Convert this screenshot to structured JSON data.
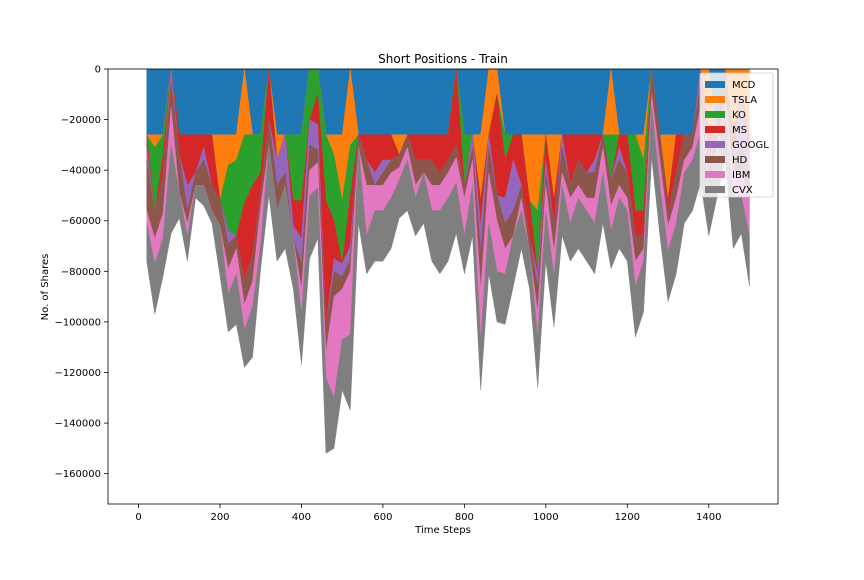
{
  "chart_data": {
    "type": "area",
    "title": "Short Positions - Train",
    "xlabel": "Time Steps",
    "ylabel": "No. of Shares",
    "xlim": [
      -75,
      1570
    ],
    "ylim": [
      -172000,
      0
    ],
    "x_ticks": [
      0,
      200,
      400,
      600,
      800,
      1000,
      1200,
      1400
    ],
    "x_tick_labels": [
      "0",
      "200",
      "400",
      "600",
      "800",
      "1000",
      "1200",
      "1400"
    ],
    "y_ticks": [
      0,
      -20000,
      -40000,
      -60000,
      -80000,
      -100000,
      -120000,
      -140000,
      -160000
    ],
    "y_tick_labels": [
      "0",
      "−20000",
      "−40000",
      "−60000",
      "−80000",
      "−100000",
      "−120000",
      "−140000",
      "−160000"
    ],
    "legend_position": "top-right",
    "grid": false,
    "x_start": 20,
    "x_end": 1500,
    "x_step": 20,
    "series": [
      {
        "name": "MCD",
        "color": "#1f77b4",
        "values": [
          -26000,
          -26000,
          -26000,
          0,
          -26000,
          -26000,
          -26000,
          -26000,
          -26000,
          -26000,
          -26000,
          -26000,
          0,
          -26000,
          -26000,
          0,
          -26000,
          -26000,
          -26000,
          -26000,
          0,
          0,
          -26000,
          -26000,
          -26000,
          0,
          -26000,
          -26000,
          -26000,
          -26000,
          -26000,
          -26000,
          -26000,
          -26000,
          -26000,
          -26000,
          -26000,
          -26000,
          0,
          -26000,
          -26000,
          -26000,
          0,
          0,
          -26000,
          -26000,
          -26000,
          -26000,
          -26000,
          -26000,
          -26000,
          -26000,
          -26000,
          -26000,
          -26000,
          -26000,
          -26000,
          0,
          -26000,
          -26000,
          -26000,
          -26000,
          0,
          -26000,
          -26000,
          -26000,
          -26000,
          -26000,
          0,
          0,
          -26000,
          0,
          0,
          0,
          0
        ]
      },
      {
        "name": "TSLA",
        "color": "#ff7f0e",
        "values": [
          0,
          -5000,
          0,
          0,
          0,
          0,
          0,
          0,
          0,
          -26000,
          -12000,
          -10000,
          -26000,
          0,
          0,
          0,
          -10000,
          0,
          0,
          0,
          0,
          0,
          0,
          -8000,
          -26000,
          -30000,
          0,
          0,
          0,
          0,
          0,
          -8000,
          0,
          0,
          0,
          0,
          0,
          0,
          0,
          0,
          0,
          -26000,
          -26000,
          -10000,
          0,
          0,
          0,
          -26000,
          -30000,
          0,
          -26000,
          0,
          0,
          0,
          0,
          0,
          0,
          -26000,
          0,
          0,
          0,
          -10000,
          0,
          0,
          -26000,
          0,
          0,
          0,
          0,
          -26000,
          0,
          0,
          -26000,
          -10000,
          -26000
        ]
      },
      {
        "name": "KO",
        "color": "#2ca02c",
        "values": [
          0,
          -26000,
          -8000,
          0,
          0,
          0,
          0,
          0,
          0,
          0,
          -26000,
          -30000,
          -27000,
          -20000,
          -15000,
          0,
          0,
          0,
          -26000,
          -26000,
          -20000,
          -10000,
          -26000,
          -26000,
          -25000,
          -20000,
          0,
          0,
          0,
          0,
          0,
          0,
          0,
          0,
          0,
          0,
          0,
          0,
          0,
          -20000,
          0,
          0,
          0,
          0,
          -10000,
          0,
          0,
          0,
          -25000,
          0,
          0,
          0,
          0,
          0,
          0,
          0,
          0,
          -18000,
          0,
          0,
          -30000,
          -20000,
          0,
          0,
          0,
          0,
          0,
          0,
          0,
          0,
          0,
          0,
          0,
          0,
          0
        ]
      },
      {
        "name": "MS",
        "color": "#d62728",
        "values": [
          -5000,
          0,
          -8000,
          0,
          -8000,
          -20000,
          -15000,
          -5000,
          -20000,
          0,
          0,
          0,
          -30000,
          -28000,
          -8000,
          -20000,
          0,
          0,
          -10000,
          -15000,
          0,
          -12000,
          -50000,
          -15000,
          0,
          -20000,
          0,
          -10000,
          -15000,
          -10000,
          -10000,
          0,
          0,
          -10000,
          -10000,
          -10000,
          -15000,
          -10000,
          -30000,
          0,
          0,
          -10000,
          0,
          -40000,
          -15000,
          -10000,
          -20000,
          -15000,
          0,
          -10000,
          -10000,
          0,
          -20000,
          -10000,
          -15000,
          -10000,
          0,
          0,
          -5000,
          -15000,
          -10000,
          -10000,
          0,
          0,
          -5000,
          -15000,
          0,
          0,
          0,
          -10000,
          0,
          0,
          -10000,
          0,
          -10000
        ]
      },
      {
        "name": "GOOGL",
        "color": "#9467bd",
        "values": [
          -5000,
          0,
          0,
          -5000,
          0,
          -10000,
          0,
          -5000,
          0,
          0,
          -5000,
          0,
          0,
          0,
          0,
          0,
          -10000,
          -15000,
          -5000,
          -10000,
          -10000,
          -10000,
          0,
          -5000,
          -5000,
          -5000,
          0,
          0,
          -5000,
          -5000,
          0,
          0,
          0,
          0,
          0,
          0,
          0,
          0,
          0,
          0,
          -5000,
          -10000,
          -5000,
          0,
          -10000,
          -20000,
          0,
          0,
          -5000,
          -5000,
          0,
          -5000,
          0,
          0,
          0,
          -5000,
          0,
          0,
          -5000,
          0,
          0,
          0,
          0,
          0,
          0,
          0,
          0,
          0,
          -5000,
          -5000,
          0,
          0,
          0,
          -20000,
          -5000
        ]
      },
      {
        "name": "HD",
        "color": "#8c564b",
        "values": [
          -20000,
          -10000,
          -15000,
          -10000,
          -15000,
          -5000,
          -5000,
          -10000,
          -10000,
          -10000,
          -10000,
          -5000,
          -10000,
          -10000,
          -5000,
          -10000,
          -10000,
          -5000,
          0,
          -10000,
          -10000,
          -5000,
          -10000,
          -10000,
          -5000,
          -5000,
          -5000,
          -10000,
          0,
          -5000,
          -5000,
          -5000,
          -5000,
          -10000,
          -5000,
          -10000,
          -5000,
          -5000,
          -5000,
          -5000,
          -5000,
          -15000,
          -10000,
          -10000,
          -10000,
          -10000,
          -5000,
          -5000,
          -10000,
          -5000,
          -10000,
          -10000,
          -5000,
          -10000,
          -10000,
          -10000,
          -5000,
          -10000,
          -10000,
          -10000,
          -10000,
          -5000,
          -10000,
          -10000,
          -5000,
          -10000,
          -10000,
          -5000,
          -10000,
          -5000,
          -5000,
          -10000,
          -5000,
          -10000,
          -10000
        ]
      },
      {
        "name": "IBM",
        "color": "#e377c2",
        "values": [
          -5000,
          -10000,
          -10000,
          -15000,
          0,
          -5000,
          0,
          0,
          0,
          0,
          -10000,
          -10000,
          -10000,
          -10000,
          -15000,
          0,
          0,
          0,
          0,
          -10000,
          -10000,
          -10000,
          -10000,
          -40000,
          -20000,
          -25000,
          0,
          -20000,
          -10000,
          -10000,
          -10000,
          -5000,
          -5000,
          -5000,
          0,
          -10000,
          -10000,
          -10000,
          -10000,
          -15000,
          -10000,
          -20000,
          -20000,
          -20000,
          -10000,
          0,
          -5000,
          0,
          -10000,
          -10000,
          -10000,
          -5000,
          -10000,
          -5000,
          -5000,
          -10000,
          -10000,
          -10000,
          -5000,
          -5000,
          -10000,
          -5000,
          -5000,
          -10000,
          -10000,
          -10000,
          -5000,
          -5000,
          -10000,
          0,
          -5000,
          -5000,
          -10000,
          -10000,
          -15000
        ]
      },
      {
        "name": "CVX",
        "color": "#7f7f7f",
        "values": [
          -15000,
          -20000,
          -15000,
          -35000,
          -10000,
          -10000,
          -5000,
          -8000,
          -5000,
          -20000,
          -15000,
          -20000,
          -15000,
          -20000,
          -10000,
          -20000,
          -20000,
          -25000,
          -20000,
          -20000,
          -25000,
          -20000,
          -30000,
          -20000,
          -20000,
          -30000,
          -30000,
          -15000,
          -20000,
          -20000,
          -20000,
          -15000,
          -20000,
          -15000,
          -20000,
          -20000,
          -25000,
          -25000,
          -20000,
          -15000,
          -20000,
          -20000,
          -20000,
          -20000,
          -20000,
          -20000,
          -15000,
          -15000,
          -20000,
          -20000,
          -20000,
          -20000,
          -15000,
          -20000,
          -20000,
          -20000,
          -20000,
          -15000,
          -20000,
          -20000,
          -20000,
          -20000,
          -20000,
          -20000,
          -20000,
          -20000,
          -20000,
          -20000,
          -20000,
          -20000,
          -15000,
          -20000,
          -20000,
          -15000,
          -20000
        ]
      }
    ]
  }
}
